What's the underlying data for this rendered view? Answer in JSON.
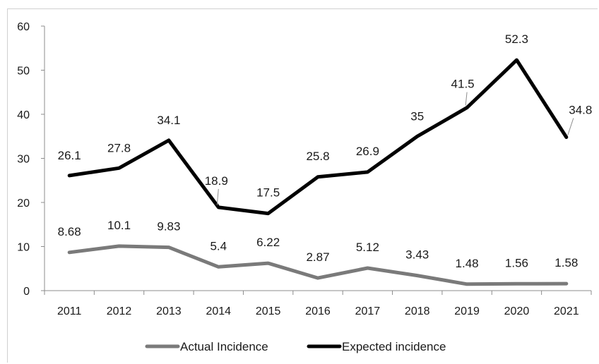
{
  "chart_data": {
    "type": "line",
    "categories": [
      "2011",
      "2012",
      "2013",
      "2014",
      "2015",
      "2016",
      "2017",
      "2018",
      "2019",
      "2020",
      "2021"
    ],
    "series": [
      {
        "name": "Actual Incidence",
        "color": "#7a7a7a",
        "values": [
          8.68,
          10.1,
          9.83,
          5.4,
          6.22,
          2.87,
          5.12,
          3.43,
          1.48,
          1.56,
          1.58
        ],
        "labels": [
          "8.68",
          "10.1",
          "9.83",
          "5.4",
          "6.22",
          "2.87",
          "5.12",
          "3.43",
          "1.48",
          "1.56",
          "1.58"
        ]
      },
      {
        "name": "Expected incidence",
        "color": "#000000",
        "values": [
          26.1,
          27.8,
          34.1,
          18.9,
          17.5,
          25.8,
          26.9,
          35,
          41.5,
          52.3,
          34.8
        ],
        "labels": [
          "26.1",
          "27.8",
          "34.1",
          "18.9",
          "17.5",
          "25.8",
          "26.9",
          "35",
          "41.5",
          "52.3",
          "34.8"
        ]
      }
    ],
    "ylim": [
      0,
      60
    ],
    "yticks": [
      0,
      10,
      20,
      30,
      40,
      50,
      60
    ],
    "title": "",
    "xlabel": "",
    "ylabel": "",
    "grid": false,
    "legend_position": "bottom"
  }
}
